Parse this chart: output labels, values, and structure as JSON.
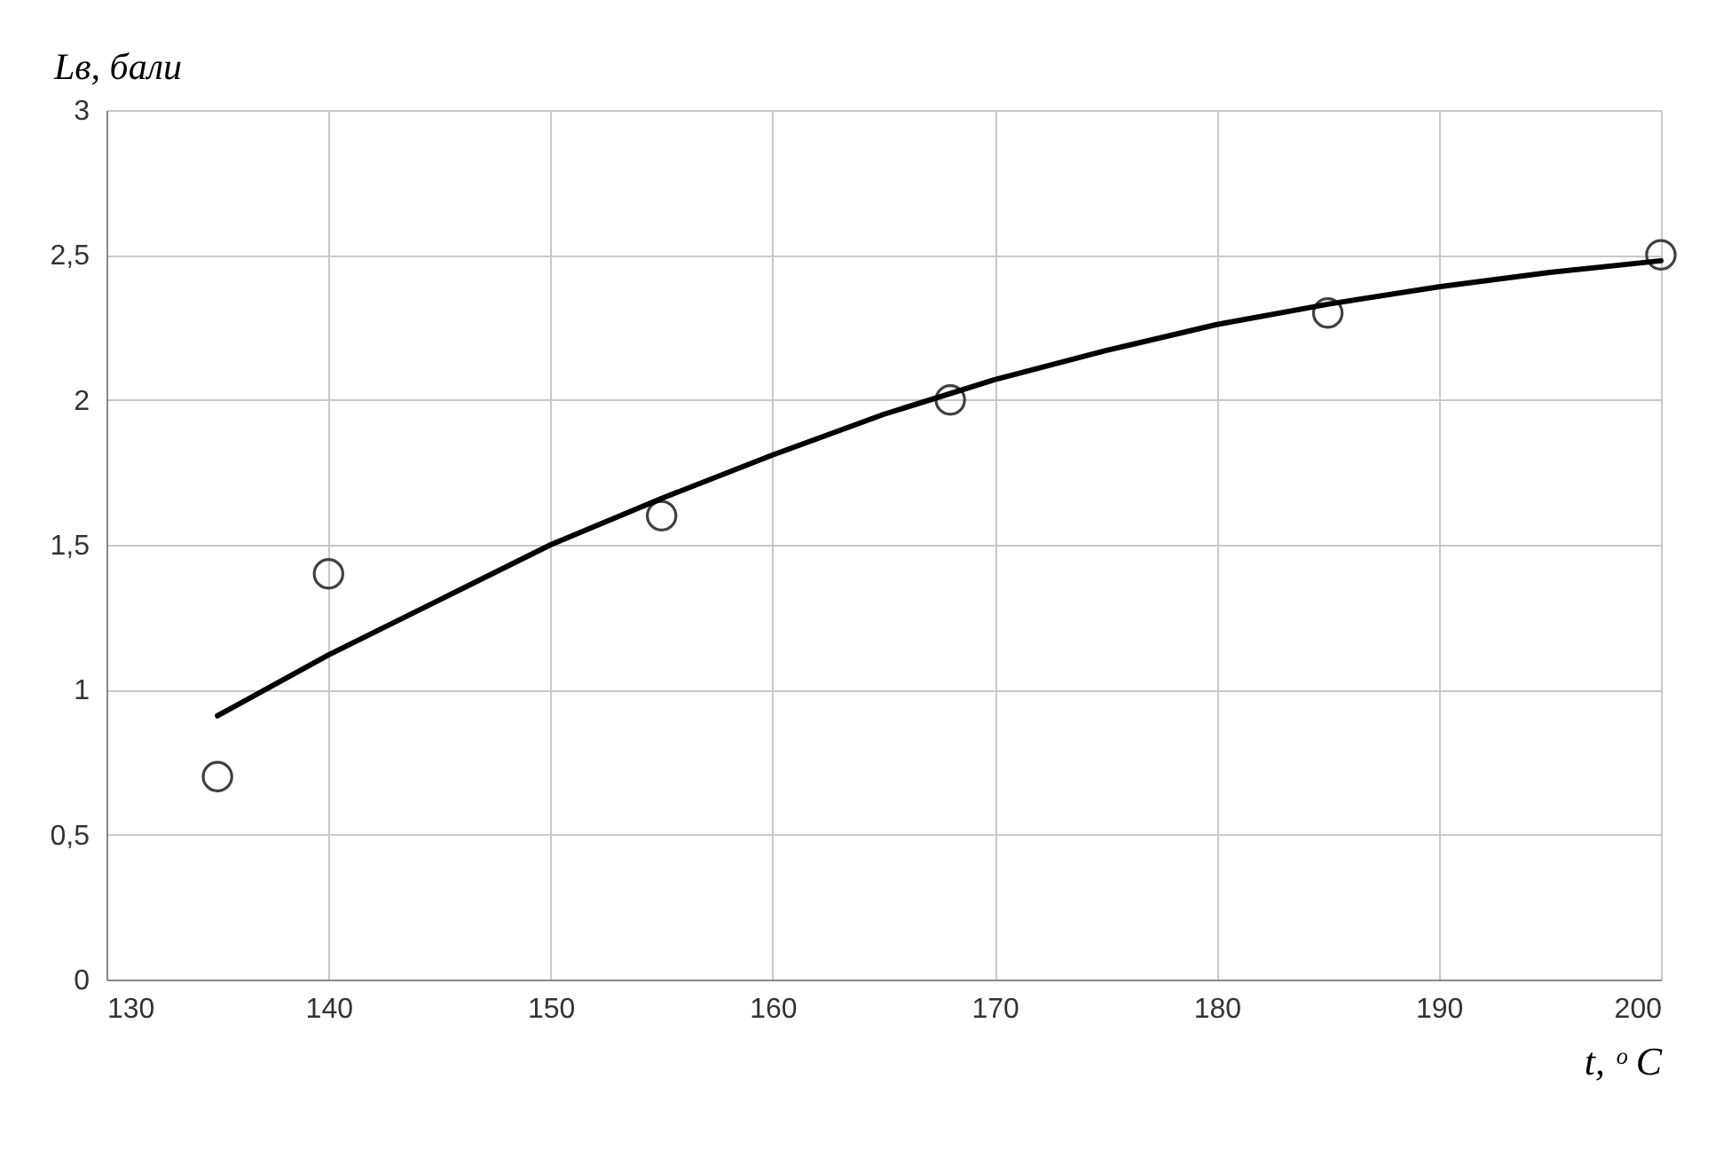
{
  "chart_data": {
    "type": "scatter",
    "xlabel": "t,  ᵒ C",
    "ylabel": "Lв,  бали",
    "xlim": [
      130,
      200
    ],
    "xticks": [
      130,
      140,
      150,
      160,
      170,
      180,
      190,
      200
    ],
    "ylim": [
      0,
      3
    ],
    "yticks": [
      0,
      {
        "value": 0.5,
        "label": "0,5"
      },
      1,
      {
        "value": 1.5,
        "label": "1,5"
      },
      2,
      {
        "value": 2.5,
        "label": "2,5"
      },
      3
    ],
    "grid": true,
    "marker": "circle",
    "series": [
      {
        "color": "#404040",
        "x": [
          135,
          140,
          155,
          168,
          185,
          200
        ],
        "values": [
          0.7,
          1.4,
          1.6,
          2.0,
          2.3,
          2.5
        ]
      },
      {
        "type": "line",
        "color": "#000000",
        "marker": "none",
        "line_style": "solid",
        "x": [
          135,
          140,
          145,
          150,
          155,
          160,
          165,
          170,
          175,
          180,
          185,
          190,
          195,
          200
        ],
        "values": [
          0.91,
          1.12,
          1.31,
          1.5,
          1.66,
          1.81,
          1.95,
          2.07,
          2.17,
          2.26,
          2.33,
          2.39,
          2.44,
          2.48
        ]
      }
    ]
  }
}
